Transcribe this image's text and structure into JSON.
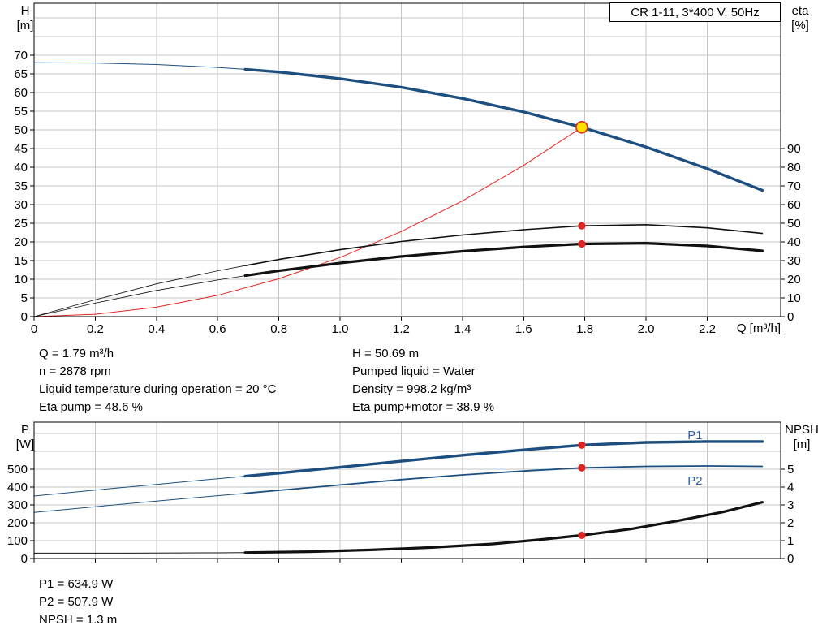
{
  "colors": {
    "accent_blue": "#1c4e80",
    "label_blue": "#2e5fa3",
    "red": "#e02520",
    "grid": "#c6c6c6",
    "duty_fill": "#ffdf00",
    "black": "#111111"
  },
  "chart_data": [
    {
      "type": "line",
      "title": "CR 1-11, 3*400 V, 50Hz",
      "x_axis": {
        "label": "Q [m³/h]",
        "min": 0,
        "max": 2.44,
        "tick_values": [
          0,
          0.2,
          0.4,
          0.6,
          0.8,
          1.0,
          1.2,
          1.4,
          1.6,
          1.8,
          2.0,
          2.2
        ],
        "tick_labels": [
          "0",
          "0.2",
          "0.4",
          "0.6",
          "0.8",
          "1.0",
          "1.2",
          "1.4",
          "1.6",
          "1.8",
          "2.0",
          "2.2"
        ]
      },
      "y_left": {
        "label": "H",
        "unit": "[m]",
        "min": 0,
        "max": 83.9,
        "grid_step": 5,
        "ticks": [
          0,
          5,
          10,
          15,
          20,
          25,
          30,
          35,
          40,
          45,
          50,
          55,
          60,
          65,
          70
        ]
      },
      "y_right": {
        "label": "eta",
        "unit": "[%]",
        "min": 0,
        "max": 167.8,
        "ticks": [
          0,
          10,
          20,
          30,
          40,
          50,
          60,
          70,
          80,
          90
        ]
      },
      "series": [
        {
          "name": "system-curve",
          "axis": "left",
          "color": "#e02520",
          "thin": 1,
          "thick": 1,
          "split": null,
          "q": [
            0,
            0.2,
            0.4,
            0.6,
            0.8,
            1.0,
            1.2,
            1.4,
            1.6,
            1.79
          ],
          "v": [
            0,
            0.63,
            2.53,
            5.69,
            10.12,
            15.82,
            22.78,
            31.0,
            40.5,
            50.69
          ]
        },
        {
          "name": "head-curve",
          "axis": "left",
          "color": "#1c4e80",
          "thin": 1,
          "thick": 3.4,
          "split": 0.69,
          "q": [
            0,
            0.2,
            0.4,
            0.6,
            0.69,
            0.8,
            1.0,
            1.2,
            1.4,
            1.6,
            1.79,
            2.0,
            2.2,
            2.38
          ],
          "v": [
            68.0,
            67.9,
            67.5,
            66.7,
            66.2,
            65.5,
            63.7,
            61.4,
            58.4,
            54.8,
            50.69,
            45.4,
            39.6,
            33.8
          ]
        },
        {
          "name": "eta-pump-curve",
          "axis": "right",
          "color": "#111111",
          "thin": 0.8,
          "thick": 1.6,
          "split": 0.69,
          "q": [
            0,
            0.2,
            0.4,
            0.6,
            0.69,
            0.8,
            1.0,
            1.2,
            1.4,
            1.6,
            1.79,
            2.0,
            2.2,
            2.38
          ],
          "v": [
            0,
            9,
            17.5,
            24.5,
            27.3,
            30.6,
            35.8,
            40.2,
            43.7,
            46.5,
            48.6,
            49.2,
            47.5,
            44.5
          ]
        },
        {
          "name": "eta-pump-motor-curve",
          "axis": "right",
          "color": "#111111",
          "thin": 0.8,
          "thick": 3.2,
          "split": 0.69,
          "q": [
            0,
            0.2,
            0.4,
            0.6,
            0.69,
            0.8,
            1.0,
            1.2,
            1.4,
            1.6,
            1.79,
            2.0,
            2.2,
            2.38
          ],
          "v": [
            0,
            7.2,
            14,
            19.6,
            21.9,
            24.5,
            28.7,
            32.2,
            35.0,
            37.3,
            38.9,
            39.3,
            37.8,
            35.2
          ]
        }
      ],
      "markers": [
        {
          "kind": "duty",
          "q": 1.79,
          "value": 50.69,
          "axis": "left"
        },
        {
          "kind": "dot",
          "q": 1.79,
          "value": 48.6,
          "axis": "right"
        },
        {
          "kind": "dot",
          "q": 1.79,
          "value": 38.9,
          "axis": "right"
        }
      ]
    },
    {
      "type": "line",
      "x_axis": {
        "label": "",
        "min": 0,
        "max": 2.44,
        "tick_values": [
          0,
          0.2,
          0.4,
          0.6,
          0.8,
          1.0,
          1.2,
          1.4,
          1.6,
          1.8,
          2.0,
          2.2
        ],
        "tick_labels": []
      },
      "y_left": {
        "label": "P",
        "unit": "[W]",
        "min": 0,
        "max": 763.6,
        "grid_step": 100,
        "ticks": [
          0,
          100,
          200,
          300,
          400,
          500
        ]
      },
      "y_right": {
        "label": "NPSH",
        "unit": "[m]",
        "min": 0,
        "max": 7.64,
        "ticks": [
          0,
          1,
          2,
          3,
          4,
          5
        ]
      },
      "series": [
        {
          "name": "p1-curve",
          "axis": "left",
          "color": "#1c4e80",
          "thin": 1,
          "thick": 3.4,
          "split": 0.69,
          "label": "P1",
          "label_q": 2.16,
          "label_v": 690,
          "label_color": "#2e5fa3",
          "q": [
            0,
            0.2,
            0.4,
            0.6,
            0.69,
            0.8,
            1.0,
            1.2,
            1.4,
            1.6,
            1.79,
            2.0,
            2.2,
            2.38
          ],
          "v": [
            350,
            383,
            415,
            447,
            461,
            478,
            511,
            545,
            578,
            608,
            634.9,
            650,
            655,
            655
          ]
        },
        {
          "name": "p2-curve",
          "axis": "left",
          "color": "#1c4e80",
          "thin": 1,
          "thick": 1.8,
          "split": 0.69,
          "label": "P2",
          "label_q": 2.16,
          "label_v": 437,
          "label_color": "#2e5fa3",
          "q": [
            0,
            0.2,
            0.4,
            0.6,
            0.69,
            0.8,
            1.0,
            1.2,
            1.4,
            1.6,
            1.79,
            2.0,
            2.2,
            2.38
          ],
          "v": [
            258,
            290,
            322,
            352,
            365,
            382,
            412,
            442,
            468,
            490,
            507.9,
            516,
            518,
            516
          ]
        },
        {
          "name": "npsh-curve",
          "axis": "right",
          "color": "#111111",
          "thin": 1,
          "thick": 3.2,
          "split": 0.69,
          "q": [
            0,
            0.3,
            0.6,
            0.69,
            0.9,
            1.1,
            1.3,
            1.5,
            1.65,
            1.79,
            1.95,
            2.1,
            2.25,
            2.38
          ],
          "v": [
            0.3,
            0.3,
            0.32,
            0.33,
            0.38,
            0.48,
            0.62,
            0.82,
            1.05,
            1.3,
            1.65,
            2.1,
            2.6,
            3.15
          ]
        }
      ],
      "markers": [
        {
          "kind": "dot",
          "q": 1.79,
          "value": 634.9,
          "axis": "left"
        },
        {
          "kind": "dot",
          "q": 1.79,
          "value": 507.9,
          "axis": "left"
        },
        {
          "kind": "dot",
          "q": 1.79,
          "value": 1.3,
          "axis": "right"
        }
      ]
    }
  ],
  "annotations": {
    "results_left": [
      "Q = 1.79 m³/h",
      "n = 2878 rpm",
      "Liquid temperature during operation = 20 °C",
      "Eta pump = 48.6 %"
    ],
    "results_right": [
      "H = 50.69 m",
      "Pumped liquid = Water",
      "Density = 998.2 kg/m³",
      "Eta pump+motor = 38.9 %"
    ],
    "results_bottom": [
      "P1 = 634.9 W",
      "P2 = 507.9 W",
      "NPSH = 1.3 m"
    ]
  }
}
